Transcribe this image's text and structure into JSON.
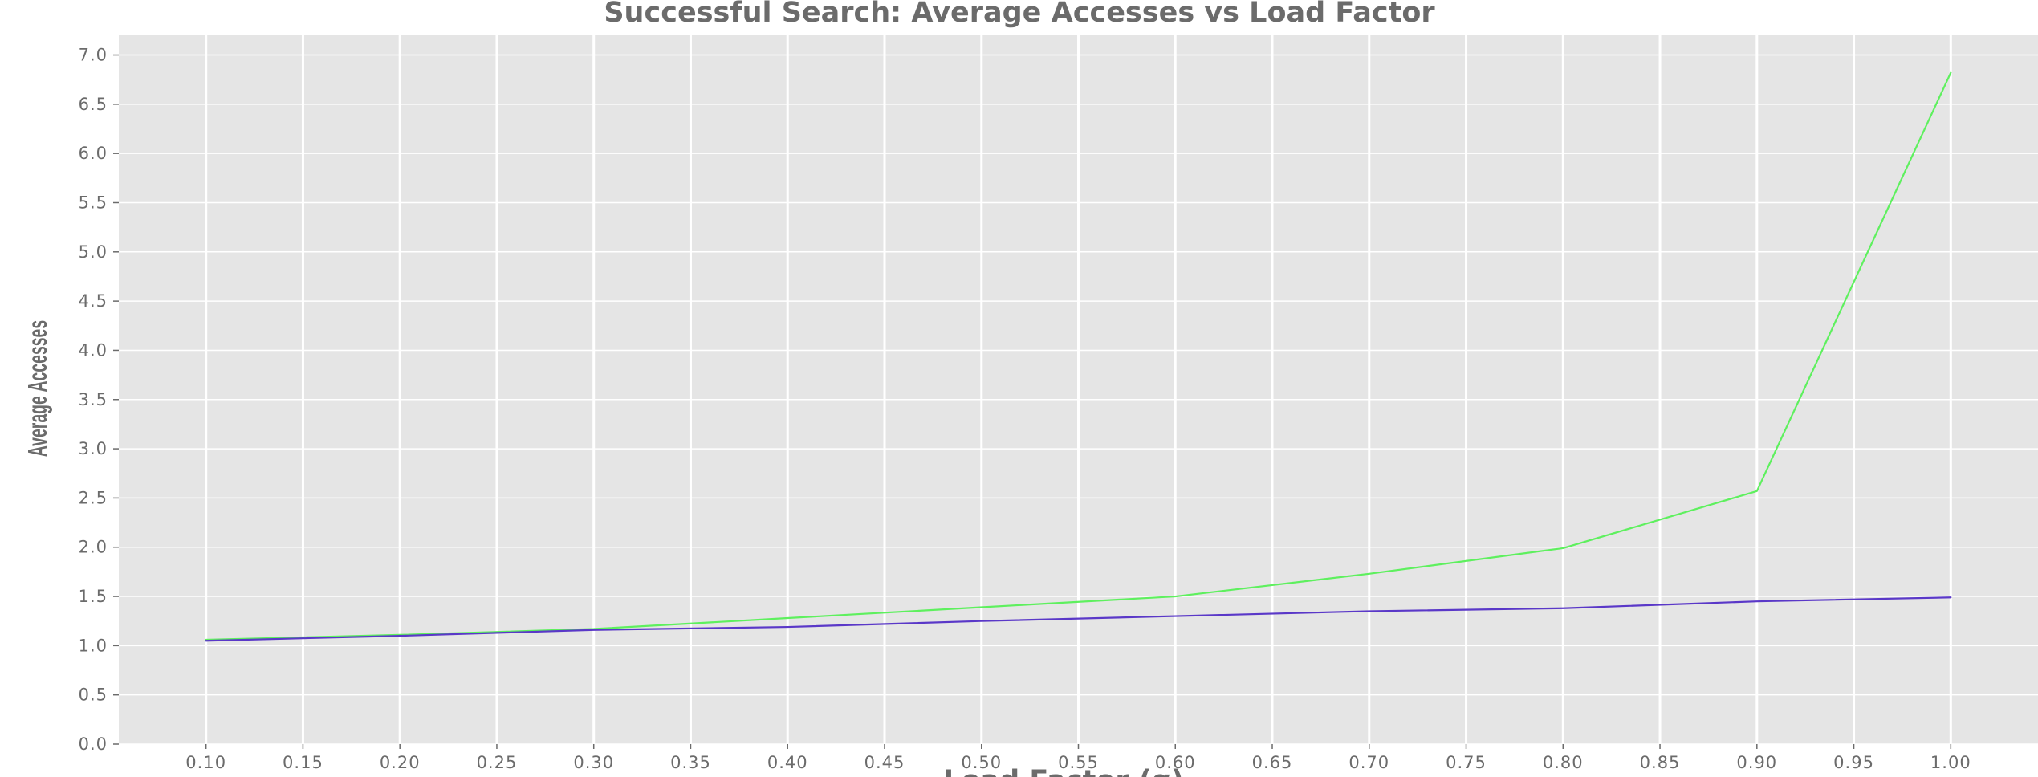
{
  "chart_data": {
    "type": "line",
    "title": "Successful Search: Average Accesses vs Load Factor",
    "xlabel": "Load Factor (α)",
    "ylabel": "Average Accesses",
    "x": [
      0.1,
      0.2,
      0.3,
      0.4,
      0.5,
      0.6,
      0.7,
      0.8,
      0.9,
      1.0
    ],
    "xlim": [
      0.055,
      1.045
    ],
    "ylim": [
      0.0,
      7.2
    ],
    "x_ticks": [
      "0.10",
      "0.15",
      "0.20",
      "0.25",
      "0.30",
      "0.35",
      "0.40",
      "0.45",
      "0.50",
      "0.55",
      "0.60",
      "0.65",
      "0.70",
      "0.75",
      "0.80",
      "0.85",
      "0.90",
      "0.95",
      "1.00"
    ],
    "y_ticks": [
      "0.0",
      "0.5",
      "1.0",
      "1.5",
      "2.0",
      "2.5",
      "3.0",
      "3.5",
      "4.0",
      "4.5",
      "5.0",
      "5.5",
      "6.0",
      "6.5",
      "7.0"
    ],
    "grid": true,
    "series": [
      {
        "color": "#5ef05e",
        "values": [
          1.06,
          1.11,
          1.17,
          1.28,
          1.39,
          1.5,
          1.73,
          1.99,
          2.57,
          6.82
        ]
      },
      {
        "color": "#5a38c8",
        "values": [
          1.05,
          1.1,
          1.16,
          1.19,
          1.25,
          1.3,
          1.35,
          1.38,
          1.45,
          1.49
        ]
      }
    ],
    "colors": {
      "plot_background": "#e5e5e5",
      "grid": "#ffffff",
      "text": "#6b6b6b"
    }
  }
}
